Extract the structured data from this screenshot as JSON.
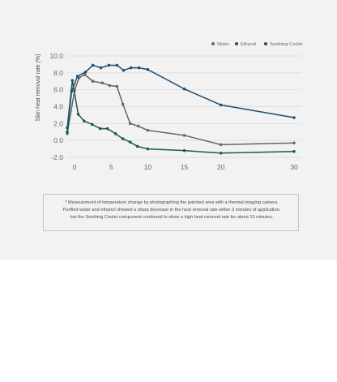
{
  "chart_data": {
    "type": "line",
    "title": "",
    "xlabel": "",
    "ylabel": "Skin heat removal rate (%)",
    "xlim": [
      -1,
      31
    ],
    "ylim": [
      -2,
      10
    ],
    "yticks": [
      "10.0",
      "8.0",
      "6.0",
      "4.0",
      "2.0",
      "0.0",
      "-2.0"
    ],
    "xticks": [
      "0",
      "5",
      "10",
      "15",
      "20",
      "30"
    ],
    "grid": true,
    "legend": "top-right",
    "series": [
      {
        "name": "Water",
        "color": "#666666",
        "points": [
          [
            -1.0,
            0.8
          ],
          [
            0.0,
            5.9
          ],
          [
            0.6,
            7.4
          ],
          [
            1.4,
            7.8
          ],
          [
            2.5,
            7.0
          ],
          [
            3.8,
            6.8
          ],
          [
            4.8,
            6.5
          ],
          [
            5.8,
            6.4
          ],
          [
            6.6,
            4.3
          ],
          [
            7.6,
            2.0
          ],
          [
            8.7,
            1.7
          ],
          [
            10.0,
            1.2
          ],
          [
            15.0,
            0.6
          ],
          [
            20.0,
            -0.5
          ],
          [
            30.0,
            -0.3
          ]
        ]
      },
      {
        "name": "Ethanol",
        "color": "#1d5a48",
        "points": [
          [
            -1.0,
            1.5
          ],
          [
            -0.3,
            7.1
          ],
          [
            0.5,
            3.1
          ],
          [
            1.3,
            2.3
          ],
          [
            2.4,
            1.9
          ],
          [
            3.5,
            1.4
          ],
          [
            4.5,
            1.4
          ],
          [
            5.6,
            0.8
          ],
          [
            6.6,
            0.2
          ],
          [
            7.6,
            -0.2
          ],
          [
            8.6,
            -0.7
          ],
          [
            10.0,
            -1.0
          ],
          [
            15.0,
            -1.2
          ],
          [
            20.0,
            -1.5
          ],
          [
            30.0,
            -1.3
          ]
        ]
      },
      {
        "name": "Soothing Cooler",
        "color": "#1f4e73",
        "points": [
          [
            -1.0,
            1.0
          ],
          [
            -0.4,
            5.8
          ],
          [
            0.4,
            7.6
          ],
          [
            1.5,
            8.1
          ],
          [
            2.5,
            8.9
          ],
          [
            3.6,
            8.6
          ],
          [
            4.7,
            8.9
          ],
          [
            5.8,
            8.9
          ],
          [
            6.7,
            8.3
          ],
          [
            7.7,
            8.6
          ],
          [
            8.8,
            8.6
          ],
          [
            10.0,
            8.4
          ],
          [
            15.0,
            6.1
          ],
          [
            20.0,
            4.2
          ],
          [
            30.0,
            2.7
          ]
        ]
      }
    ]
  },
  "note": {
    "lines": [
      "* Measurement of temperature change by photographing the patched area with a thermal imaging camera.",
      "Purified water and ethanol showed a sharp decrease in the heat removal rate within 3 minutes of application,",
      "but the Soothing Cooler component continued to show a high heat removal rate for about 10 minutes."
    ]
  }
}
